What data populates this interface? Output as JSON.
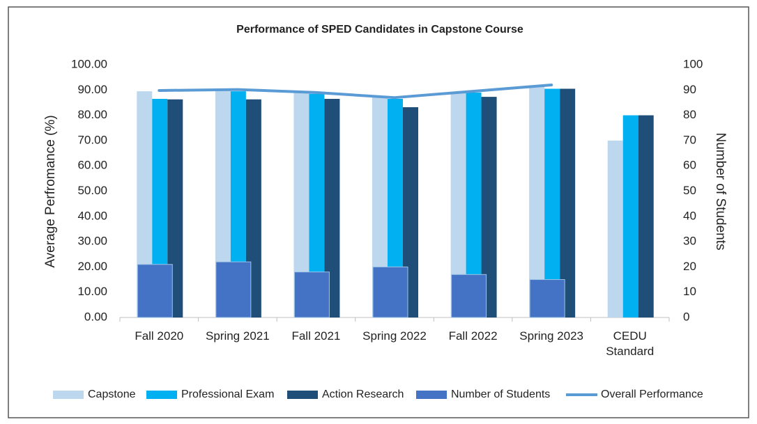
{
  "chart_data": {
    "type": "bar",
    "title": "Performance of SPED Candidates in Capstone Course",
    "y_label": "Average Perfromance (%)",
    "y2_label": "Number of Students",
    "categories": [
      "Fall 2020",
      "Spring 2021",
      "Fall 2021",
      "Spring 2022",
      "Fall 2022",
      "Spring 2023",
      "CEDU Standard"
    ],
    "series": [
      {
        "name": "Capstone",
        "color": "#bdd7ee",
        "type": "bar",
        "values": [
          89.5,
          90,
          89,
          87.5,
          89,
          91.5,
          70
        ]
      },
      {
        "name": "Professional Exam",
        "color": "#00b0f0",
        "type": "bar",
        "values": [
          86.5,
          89.5,
          88.5,
          86.5,
          89,
          90.5,
          80
        ]
      },
      {
        "name": "Action Research",
        "color": "#1f4e79",
        "type": "bar",
        "values": [
          86.3,
          86.3,
          86.5,
          83.2,
          87.3,
          90.5,
          80
        ]
      },
      {
        "name": "Number of Students",
        "color": "#4472c4",
        "type": "bar",
        "axis": "y2",
        "values": [
          21,
          22,
          18,
          20,
          17,
          15,
          null
        ]
      },
      {
        "name": "Overall Performance",
        "color": "#5b9bd5",
        "type": "line",
        "values": [
          89.8,
          90.2,
          89,
          87,
          89.5,
          92,
          null
        ]
      }
    ],
    "ylim": [
      0,
      100
    ],
    "yticks": [
      {
        "value": 0,
        "label": "0.00"
      },
      {
        "value": 10,
        "label": "10.00"
      },
      {
        "value": 20,
        "label": "20.00"
      },
      {
        "value": 30,
        "label": "30.00"
      },
      {
        "value": 40,
        "label": "40.00"
      },
      {
        "value": 50,
        "label": "50.00"
      },
      {
        "value": 60,
        "label": "60.00"
      },
      {
        "value": 70,
        "label": "70.00"
      },
      {
        "value": 80,
        "label": "80.00"
      },
      {
        "value": 90,
        "label": "90.00"
      },
      {
        "value": 100,
        "label": "100.00"
      }
    ],
    "y2lim": [
      0,
      100
    ],
    "y2ticks": [
      0,
      10,
      20,
      30,
      40,
      50,
      60,
      70,
      80,
      90,
      100
    ],
    "grid": false,
    "legend": "bottom"
  }
}
